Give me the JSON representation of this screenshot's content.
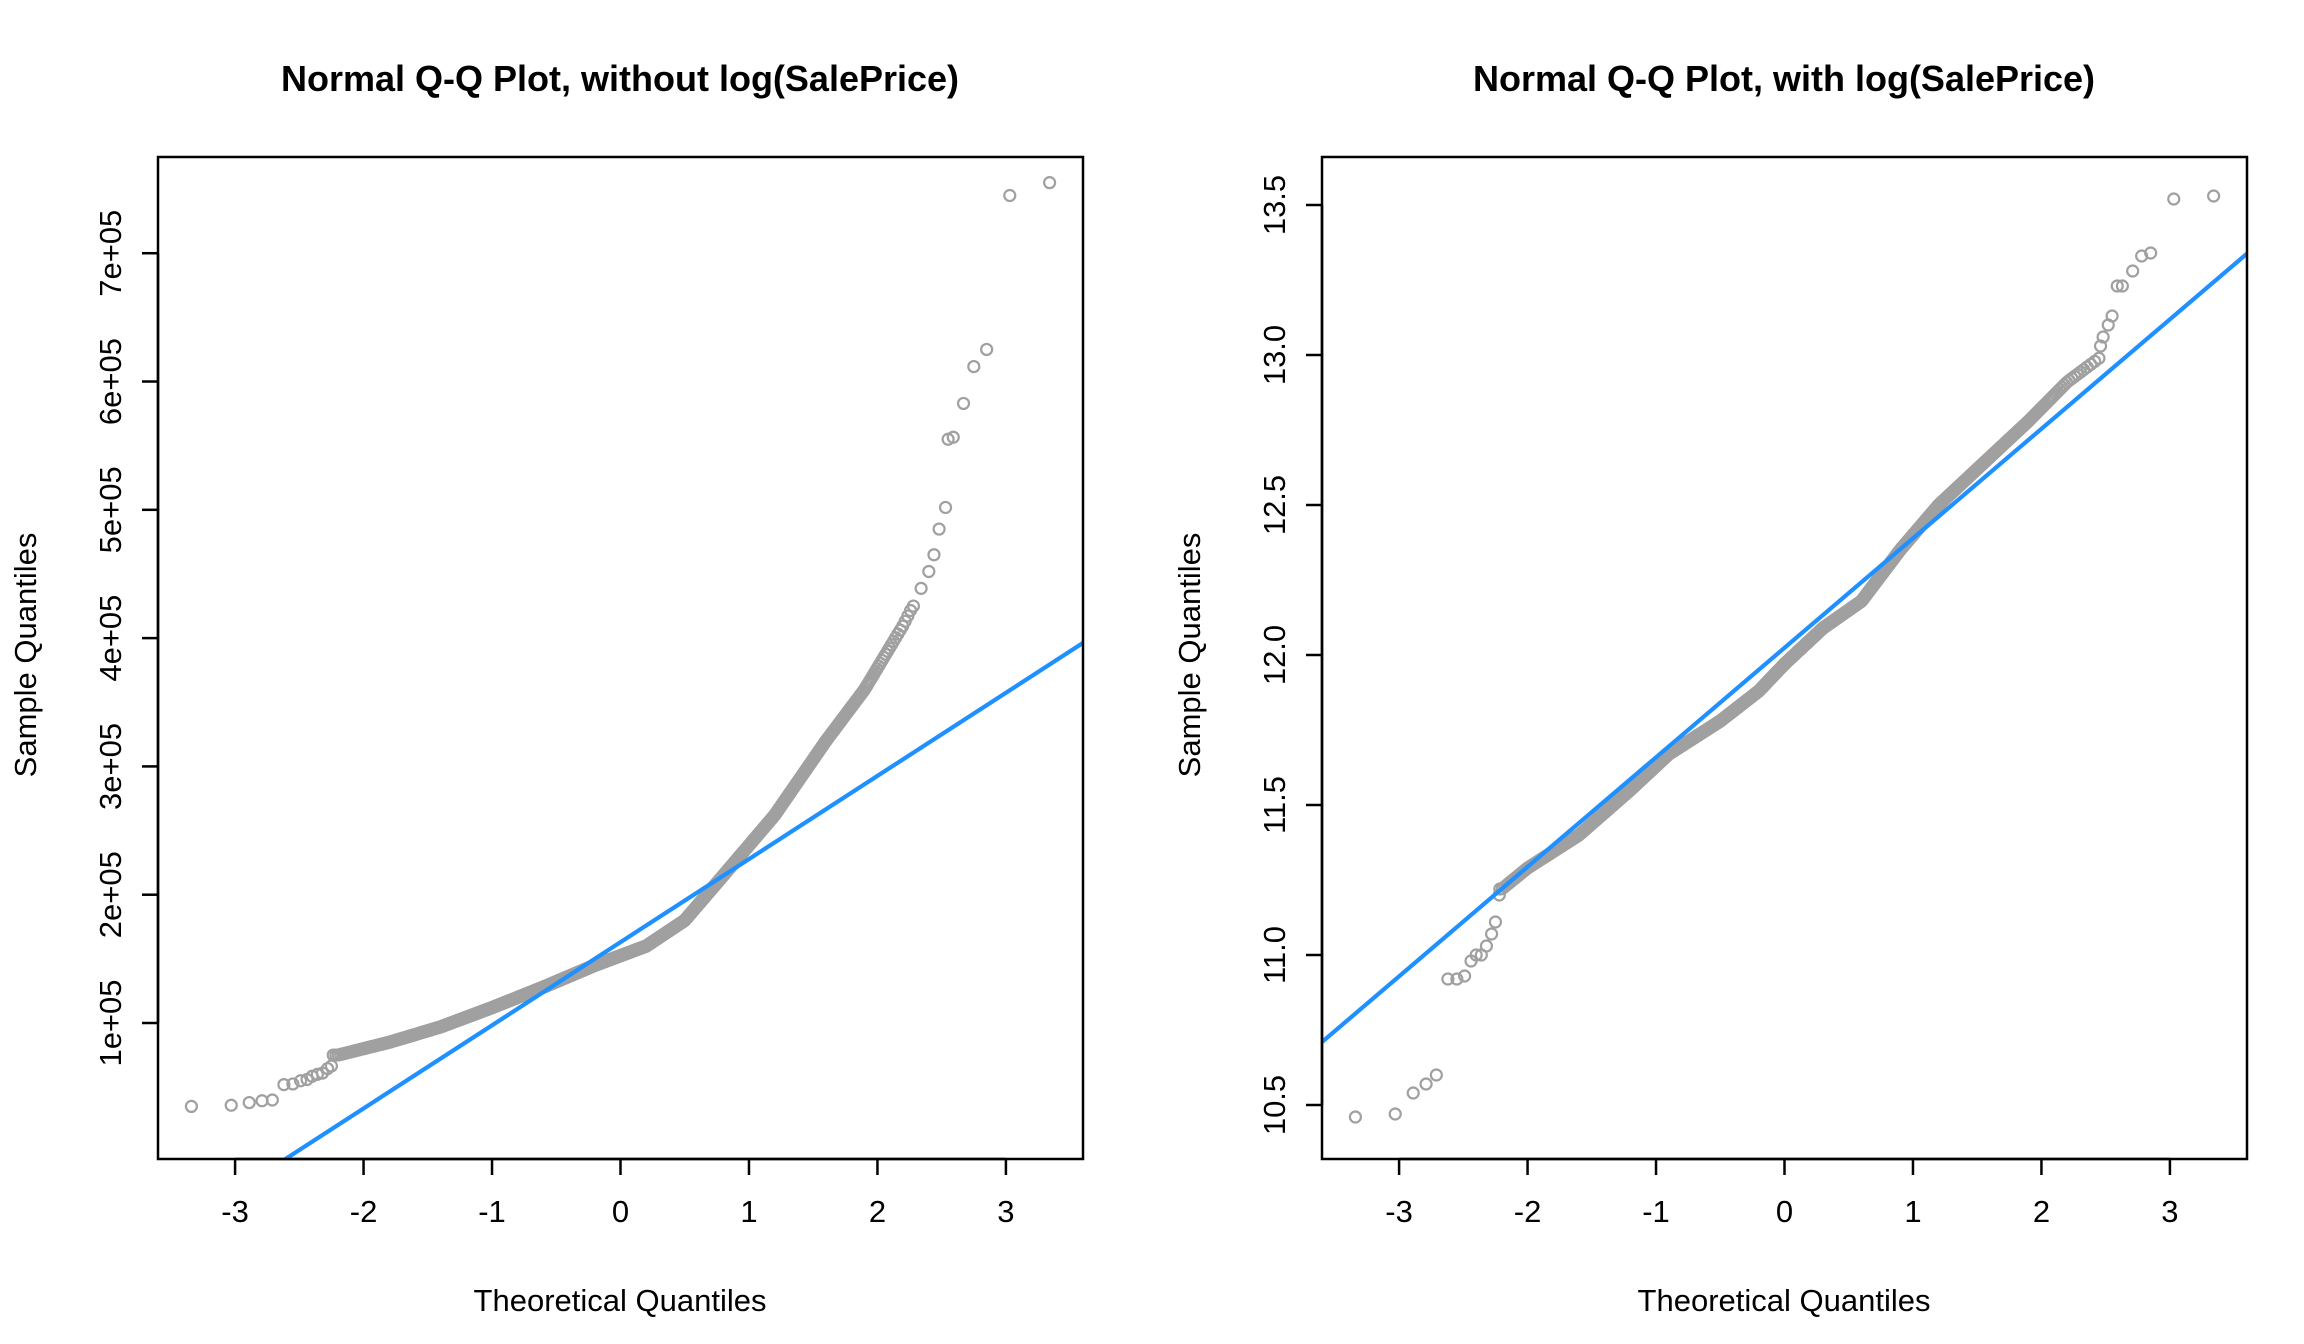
{
  "colors": {
    "points": "#a0a0a0",
    "reference_line": "#1e90ff",
    "frame": "#000000"
  },
  "chart_data": [
    {
      "type": "scatter",
      "title": "Normal Q-Q Plot, without log(SalePrice)",
      "xlabel": "Theoretical Quantiles",
      "ylabel": "Sample Quantiles",
      "xlim": [
        -3.6,
        3.6
      ],
      "ylim": [
        -6000,
        775000
      ],
      "x_ticks": [
        {
          "value": -3,
          "label": "-3"
        },
        {
          "value": -2,
          "label": "-2"
        },
        {
          "value": -1,
          "label": "-1"
        },
        {
          "value": 0,
          "label": "0"
        },
        {
          "value": 1,
          "label": "1"
        },
        {
          "value": 2,
          "label": "2"
        },
        {
          "value": 3,
          "label": "3"
        }
      ],
      "y_ticks": [
        {
          "value": 100000,
          "label": "1e+05"
        },
        {
          "value": 200000,
          "label": "2e+05"
        },
        {
          "value": 300000,
          "label": "3e+05"
        },
        {
          "value": 400000,
          "label": "4e+05"
        },
        {
          "value": 500000,
          "label": "5e+05"
        },
        {
          "value": 600000,
          "label": "6e+05"
        },
        {
          "value": 700000,
          "label": "7e+05"
        }
      ],
      "reference_line": {
        "intercept": 163000,
        "slope": 64800
      },
      "curve_knots": [
        [
          -2.2,
          75000
        ],
        [
          -1.8,
          85000
        ],
        [
          -1.4,
          97000
        ],
        [
          -1.0,
          112000
        ],
        [
          -0.6,
          128000
        ],
        [
          -0.2,
          145000
        ],
        [
          0.2,
          160000
        ],
        [
          0.5,
          180000
        ],
        [
          0.8,
          215000
        ],
        [
          1.2,
          262000
        ],
        [
          1.6,
          320000
        ],
        [
          1.9,
          360000
        ],
        [
          2.2,
          410000
        ],
        [
          2.35,
          440000
        ]
      ],
      "sample_count": 1460,
      "tail_points": [
        [
          -3.34,
          35000
        ],
        [
          -3.03,
          35900
        ],
        [
          -2.89,
          38000
        ],
        [
          -2.79,
          39400
        ],
        [
          -2.71,
          40000
        ],
        [
          -2.62,
          52000
        ],
        [
          -2.55,
          52500
        ],
        [
          -2.49,
          55000
        ],
        [
          -2.44,
          55993
        ],
        [
          -2.4,
          58500
        ],
        [
          -2.36,
          60000
        ],
        [
          -2.32,
          61000
        ],
        [
          -2.28,
          64500
        ],
        [
          -2.25,
          66500
        ],
        [
          2.28,
          425000
        ],
        [
          2.34,
          438780
        ],
        [
          2.4,
          451950
        ],
        [
          2.44,
          465000
        ],
        [
          2.48,
          485000
        ],
        [
          2.53,
          501837
        ],
        [
          2.55,
          555000
        ],
        [
          2.59,
          556581
        ],
        [
          2.67,
          582933
        ],
        [
          2.75,
          611657
        ],
        [
          2.85,
          625000
        ],
        [
          3.03,
          745000
        ],
        [
          3.34,
          755000
        ]
      ]
    },
    {
      "type": "scatter",
      "title": "Normal Q-Q Plot, with log(SalePrice)",
      "xlabel": "Theoretical Quantiles",
      "ylabel": "Sample Quantiles",
      "xlim": [
        -3.6,
        3.6
      ],
      "ylim": [
        10.32,
        13.66
      ],
      "x_ticks": [
        {
          "value": -3,
          "label": "-3"
        },
        {
          "value": -2,
          "label": "-2"
        },
        {
          "value": -1,
          "label": "-1"
        },
        {
          "value": 0,
          "label": "0"
        },
        {
          "value": 1,
          "label": "1"
        },
        {
          "value": 2,
          "label": "2"
        },
        {
          "value": 3,
          "label": "3"
        }
      ],
      "y_ticks": [
        {
          "value": 10.5,
          "label": "10.5"
        },
        {
          "value": 11.0,
          "label": "11.0"
        },
        {
          "value": 11.5,
          "label": "11.5"
        },
        {
          "value": 12.0,
          "label": "12.0"
        },
        {
          "value": 12.5,
          "label": "12.5"
        },
        {
          "value": 13.0,
          "label": "13.0"
        },
        {
          "value": 13.5,
          "label": "13.5"
        }
      ],
      "reference_line": {
        "intercept": 12.024,
        "slope": 0.365
      },
      "curve_knots": [
        [
          -2.2,
          11.22
        ],
        [
          -2.0,
          11.29
        ],
        [
          -1.6,
          11.4
        ],
        [
          -1.2,
          11.55
        ],
        [
          -0.9,
          11.67
        ],
        [
          -0.5,
          11.78
        ],
        [
          -0.2,
          11.88
        ],
        [
          0.0,
          11.97
        ],
        [
          0.3,
          12.09
        ],
        [
          0.6,
          12.18
        ],
        [
          0.9,
          12.35
        ],
        [
          1.2,
          12.5
        ],
        [
          1.6,
          12.66
        ],
        [
          1.9,
          12.78
        ],
        [
          2.2,
          12.91
        ],
        [
          2.45,
          12.99
        ]
      ],
      "sample_count": 1460,
      "tail_points": [
        [
          -3.34,
          10.46
        ],
        [
          -3.03,
          10.47
        ],
        [
          -2.89,
          10.54
        ],
        [
          -2.79,
          10.57
        ],
        [
          -2.71,
          10.6
        ],
        [
          -2.62,
          10.92
        ],
        [
          -2.55,
          10.92
        ],
        [
          -2.49,
          10.93
        ],
        [
          -2.44,
          10.98
        ],
        [
          -2.4,
          11.0
        ],
        [
          -2.36,
          11.0
        ],
        [
          -2.32,
          11.03
        ],
        [
          -2.28,
          11.07
        ],
        [
          -2.25,
          11.11
        ],
        [
          -2.22,
          11.2
        ],
        [
          2.46,
          13.03
        ],
        [
          2.48,
          13.06
        ],
        [
          2.52,
          13.1
        ],
        [
          2.55,
          13.13
        ],
        [
          2.59,
          13.23
        ],
        [
          2.63,
          13.23
        ],
        [
          2.71,
          13.28
        ],
        [
          2.78,
          13.33
        ],
        [
          2.85,
          13.34
        ],
        [
          3.03,
          13.52
        ],
        [
          3.34,
          13.53
        ]
      ]
    }
  ]
}
